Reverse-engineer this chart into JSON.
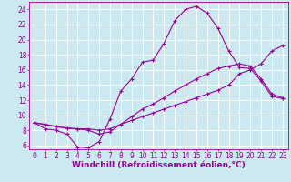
{
  "bg_color": "#cce8f0",
  "line_color": "#990099",
  "grid_color": "#ffffff",
  "xlabel": "Windchill (Refroidissement éolien,°C)",
  "xlabel_fontsize": 6.5,
  "tick_fontsize": 5.5,
  "xlim": [
    -0.5,
    23.5
  ],
  "ylim": [
    5.5,
    25.0
  ],
  "yticks": [
    6,
    8,
    10,
    12,
    14,
    16,
    18,
    20,
    22,
    24
  ],
  "xticks": [
    0,
    1,
    2,
    3,
    4,
    5,
    6,
    7,
    8,
    9,
    10,
    11,
    12,
    13,
    14,
    15,
    16,
    17,
    18,
    19,
    20,
    21,
    22,
    23
  ],
  "curve1_x": [
    0,
    1,
    2,
    3,
    4,
    5,
    6,
    7,
    8,
    9,
    10,
    11,
    12,
    13,
    14,
    15,
    16,
    17,
    18,
    19,
    20,
    21,
    22,
    23
  ],
  "curve1_y": [
    9.0,
    8.2,
    8.0,
    7.5,
    5.8,
    5.7,
    6.5,
    9.5,
    13.2,
    14.8,
    17.0,
    17.3,
    19.5,
    22.5,
    24.0,
    24.4,
    23.5,
    21.5,
    18.5,
    16.3,
    16.2,
    14.5,
    12.5,
    12.2
  ],
  "curve2_x": [
    0,
    2,
    3,
    4,
    5,
    6,
    7,
    8,
    9,
    10,
    11,
    12,
    13,
    14,
    15,
    16,
    17,
    18,
    19,
    20,
    21,
    22,
    23
  ],
  "curve2_y": [
    9.0,
    8.5,
    8.3,
    8.2,
    8.0,
    7.5,
    7.8,
    8.8,
    9.8,
    10.8,
    11.5,
    12.3,
    13.2,
    14.0,
    14.8,
    15.5,
    16.2,
    16.5,
    16.8,
    16.5,
    14.8,
    12.8,
    12.3
  ],
  "curve3_x": [
    0,
    1,
    2,
    3,
    4,
    5,
    6,
    7,
    8,
    9,
    10,
    11,
    12,
    13,
    14,
    15,
    16,
    17,
    18,
    19,
    20,
    21,
    22,
    23
  ],
  "curve3_y": [
    9.0,
    8.8,
    8.5,
    8.3,
    8.2,
    8.2,
    8.0,
    8.2,
    8.8,
    9.3,
    9.8,
    10.3,
    10.8,
    11.3,
    11.8,
    12.3,
    12.8,
    13.3,
    14.0,
    15.5,
    16.0,
    16.8,
    18.5,
    19.2
  ]
}
